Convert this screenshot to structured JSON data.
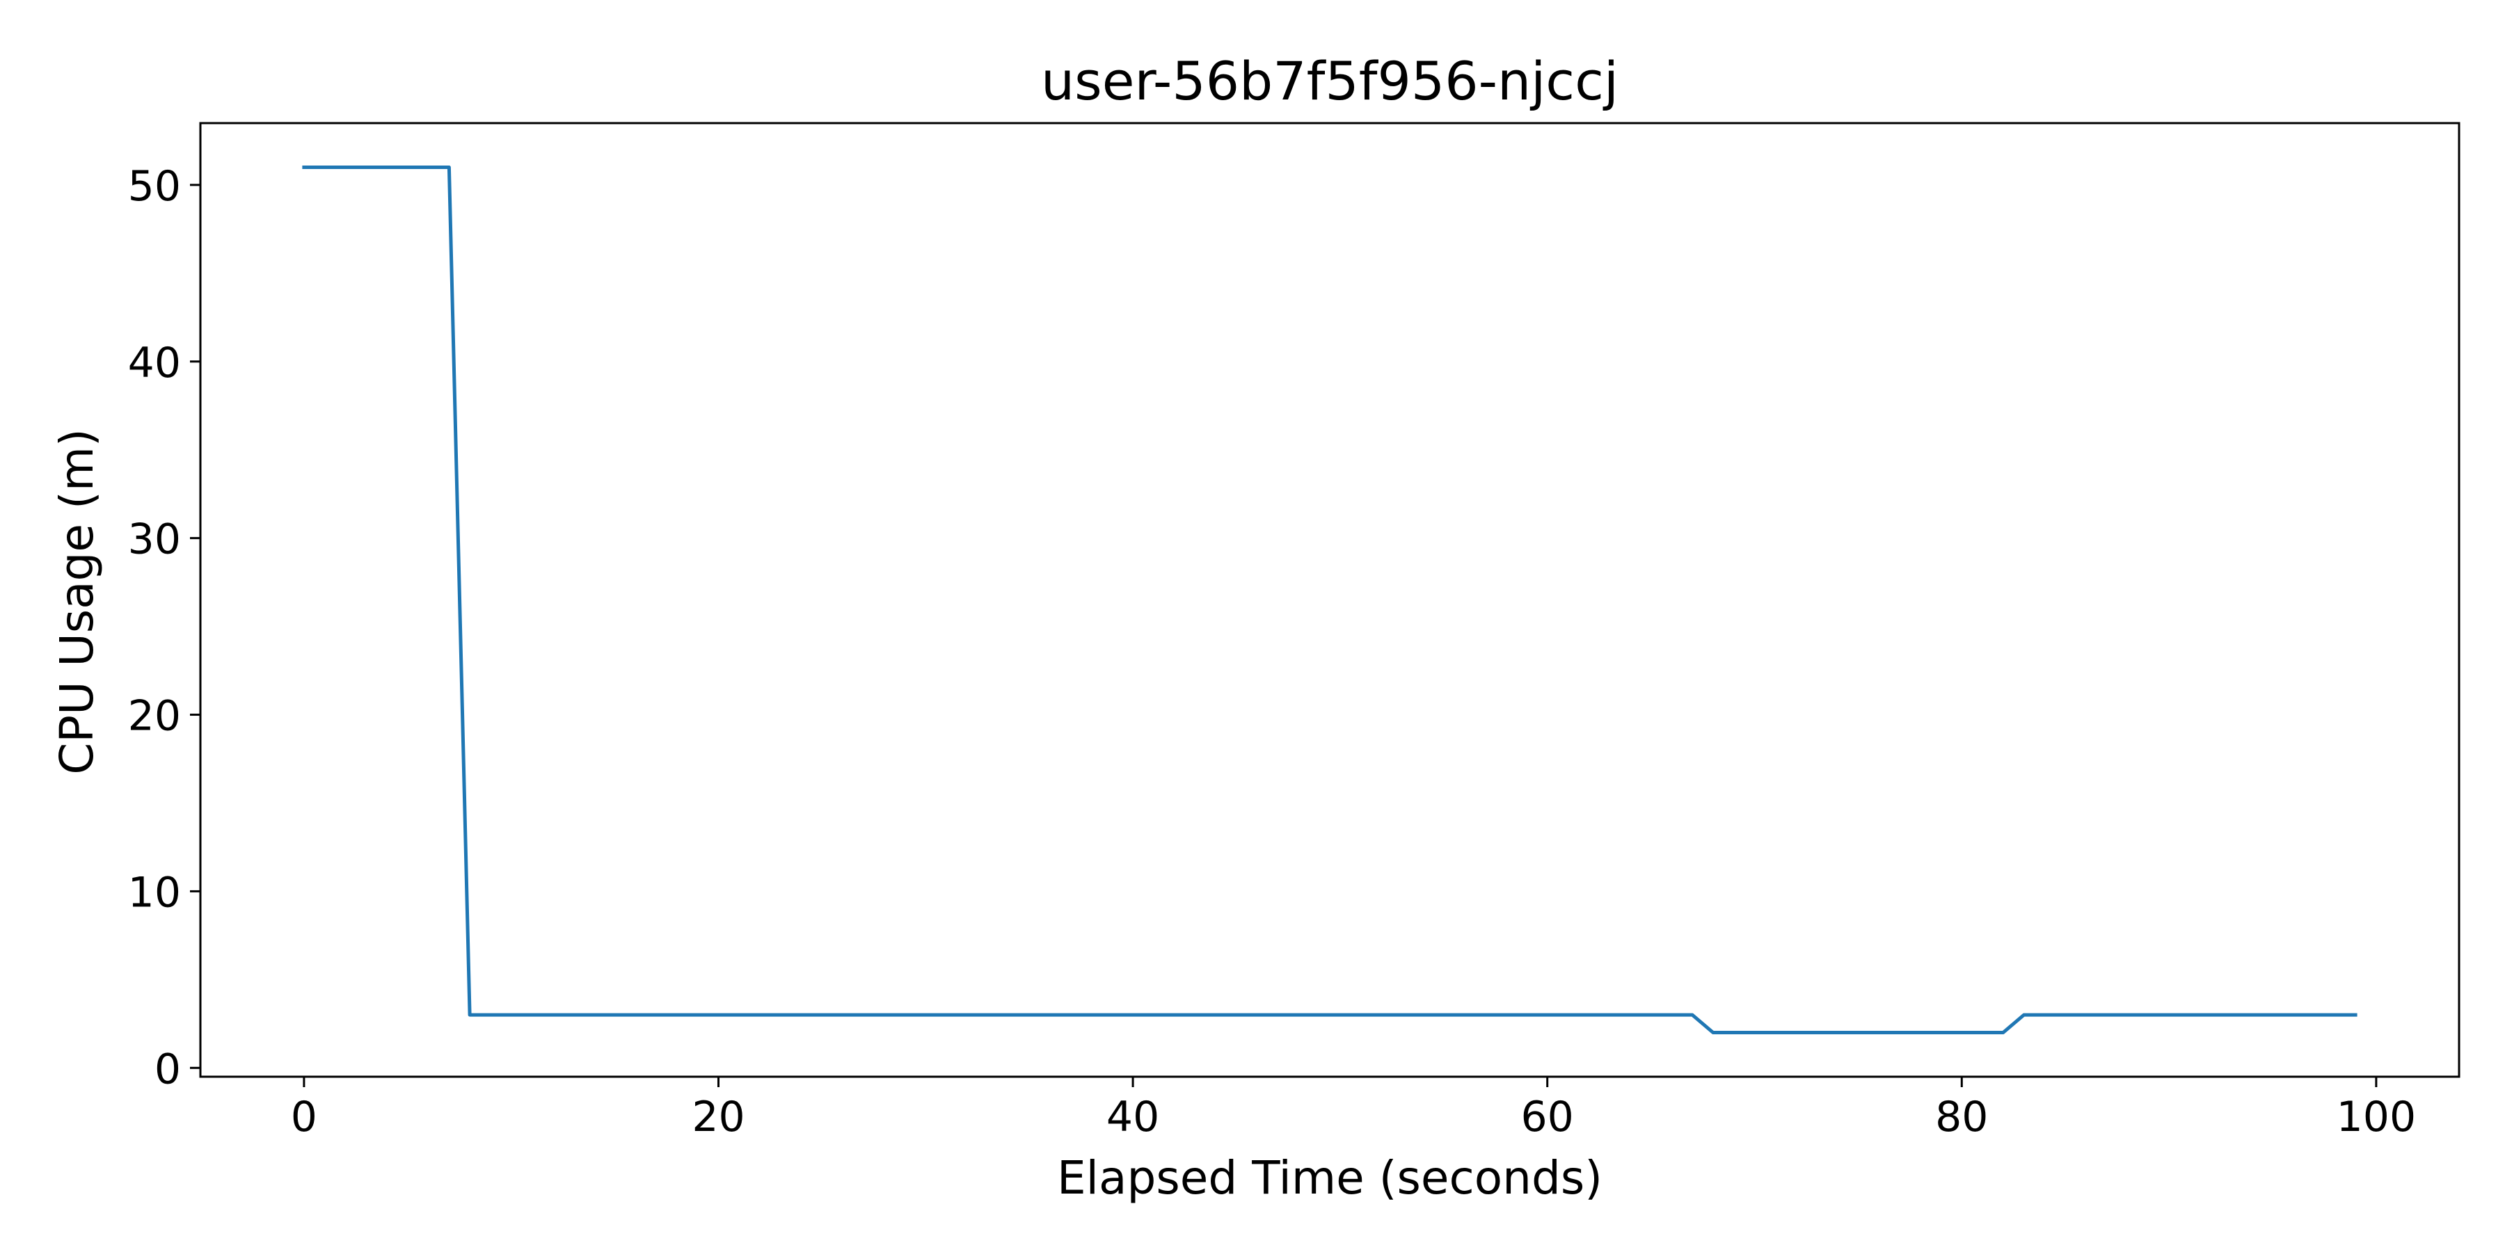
{
  "chart_data": {
    "type": "line",
    "title": "user-56b7f5f956-njccj",
    "xlabel": "Elapsed Time (seconds)",
    "ylabel": "CPU Usage (m)",
    "xlim": [
      -5,
      104
    ],
    "ylim": [
      -0.5,
      53.5
    ],
    "xticks": [
      0,
      20,
      40,
      60,
      80,
      100
    ],
    "yticks": [
      0,
      10,
      20,
      30,
      40,
      50
    ],
    "grid": false,
    "series": [
      {
        "color": "#1f77b4",
        "points": [
          [
            0,
            51
          ],
          [
            7,
            51
          ],
          [
            8,
            3
          ],
          [
            67,
            3
          ],
          [
            68,
            2
          ],
          [
            82,
            2
          ],
          [
            83,
            3
          ],
          [
            99,
            3
          ]
        ]
      }
    ]
  }
}
